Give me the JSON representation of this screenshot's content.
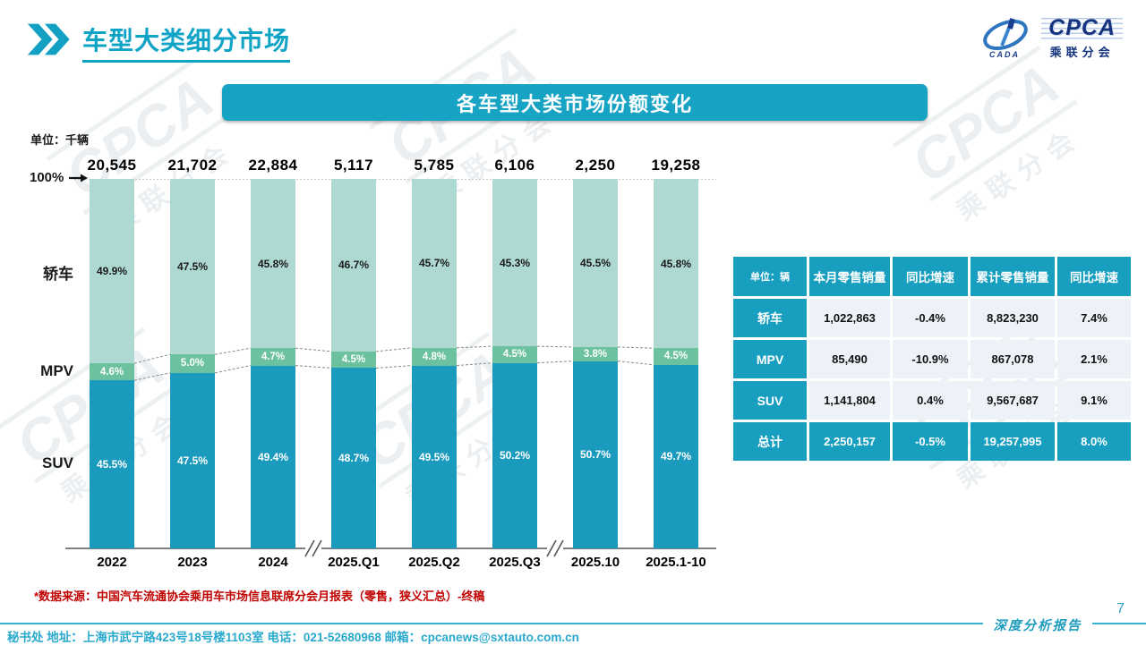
{
  "page": {
    "title": "车型大类细分市场",
    "page_number": "7",
    "report_label": "深度分析报告",
    "source_note": "*数据来源：中国汽车流通协会乘用车市场信息联席分会月报表（零售，狭义汇总）-终稿",
    "contact": "秘书处  地址：上海市武宁路423号18号楼1103室  电话：021-52680968   邮箱：cpcanews@sxtauto.com.cn"
  },
  "logo": {
    "cpca": "CPCA",
    "cada": "CADA",
    "cn": "乘联分会"
  },
  "banner": {
    "title": "各车型大类市场份额变化"
  },
  "watermark": {
    "en": "CPCA",
    "cn": "乘联分会"
  },
  "colors": {
    "accent_teal": "#17a3c4",
    "table_teal": "#189fc0",
    "sedan_green": "#aed9d2",
    "mpv_green": "#6cc29e",
    "suv_teal": "#1a9abc",
    "note_red": "#c00000",
    "table_cell_bg": "#edf2f8"
  },
  "chart_data": {
    "type": "bar",
    "subtype": "100pct-stacked-bar",
    "title": "各车型大类市场份额变化",
    "unit_label": "单位：千辆",
    "hundred_label": "100%",
    "ylim": [
      0,
      100
    ],
    "grid": false,
    "categories": [
      "2022",
      "2023",
      "2024",
      "2025.Q1",
      "2025.Q2",
      "2025.Q3",
      "2025.10",
      "2025.1-10"
    ],
    "totals": [
      "20,545",
      "21,702",
      "22,884",
      "5,117",
      "5,785",
      "6,106",
      "2,250",
      "19,258"
    ],
    "axis_breaks_after": [
      2,
      5
    ],
    "series": [
      {
        "key": "sedan",
        "name": "轿车",
        "color": "#aed9d2",
        "label_color": "#1a1a1a",
        "values": [
          49.9,
          47.5,
          45.8,
          46.7,
          45.7,
          45.3,
          45.5,
          45.8
        ]
      },
      {
        "key": "mpv",
        "name": "MPV",
        "color": "#6cc29e",
        "label_color": "#ffffff",
        "values": [
          4.6,
          5.0,
          4.7,
          4.5,
          4.8,
          4.5,
          3.8,
          4.5
        ]
      },
      {
        "key": "suv",
        "name": "SUV",
        "color": "#1a9abc",
        "label_color": "#ffffff",
        "values": [
          45.5,
          47.5,
          49.4,
          48.7,
          49.5,
          50.2,
          50.7,
          49.7
        ]
      }
    ]
  },
  "table": {
    "unit_header": "单位：辆",
    "columns": [
      "本月零售销量",
      "同比增速",
      "累计零售销量",
      "同比增速"
    ],
    "rows": [
      {
        "label": "轿车",
        "values": [
          "1,022,863",
          "-0.4%",
          "8,823,230",
          "7.4%"
        ],
        "highlight": false
      },
      {
        "label": "MPV",
        "values": [
          "85,490",
          "-10.9%",
          "867,078",
          "2.1%"
        ],
        "highlight": false
      },
      {
        "label": "SUV",
        "values": [
          "1,141,804",
          "0.4%",
          "9,567,687",
          "9.1%"
        ],
        "highlight": false
      },
      {
        "label": "总计",
        "values": [
          "2,250,157",
          "-0.5%",
          "19,257,995",
          "8.0%"
        ],
        "highlight": true
      }
    ]
  }
}
